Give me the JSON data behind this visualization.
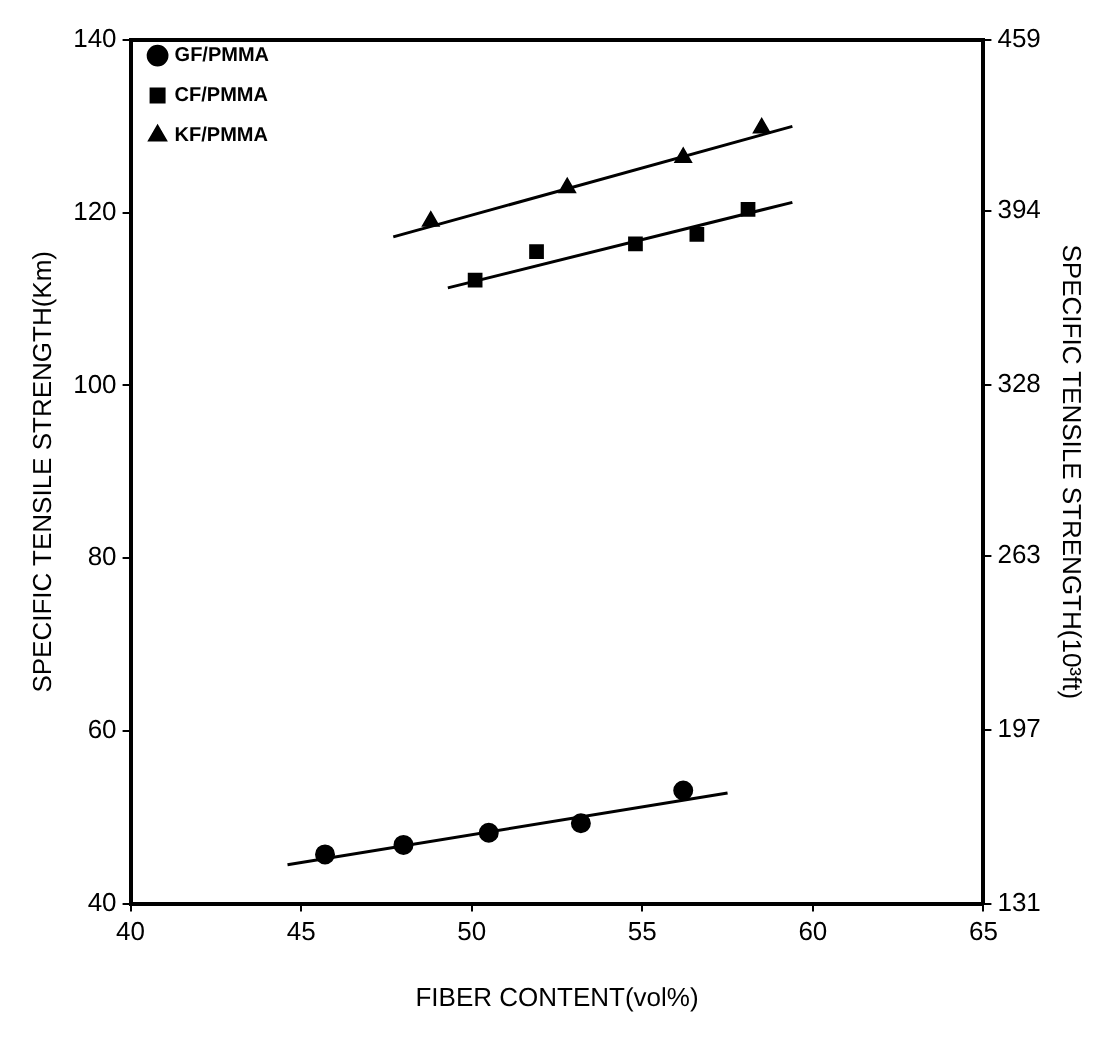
{
  "chart_data": {
    "type": "scatter",
    "xlabel": "FIBER CONTENT(vol%)",
    "ylabel": "SPECIFIC TENSILE STRENGTH(Km)",
    "y2label": "SPECIFIC TENSILE STRENGTH(10³ft)",
    "xlim": [
      40,
      65
    ],
    "xticks": [
      40,
      45,
      50,
      55,
      60,
      65
    ],
    "ylim": [
      40,
      140
    ],
    "yticks": [
      40,
      60,
      80,
      100,
      120,
      140
    ],
    "y2lim": [
      131,
      459
    ],
    "y2ticks": [
      131,
      197,
      263,
      328,
      394,
      459
    ],
    "grid": false,
    "legend": "top left",
    "series": [
      {
        "name": "GF/PMMA",
        "color": "#000000",
        "marker": "circle",
        "x": [
          45.7,
          48.0,
          50.5,
          53.2,
          56.2
        ],
        "values": [
          45.7,
          46.8,
          48.2,
          49.3,
          53.1
        ]
      },
      {
        "name": "CF/PMMA",
        "color": "#000000",
        "marker": "square",
        "x": [
          50.1,
          51.9,
          54.8,
          56.6,
          58.1
        ],
        "values": [
          112.2,
          115.5,
          116.4,
          117.5,
          120.4
        ]
      },
      {
        "name": "KF/PMMA",
        "color": "#000000",
        "marker": "triangle",
        "x": [
          48.8,
          52.8,
          56.2,
          58.5
        ],
        "values": [
          119.0,
          122.9,
          126.4,
          129.8
        ]
      },
      {
        "type": "line",
        "color": "#000000",
        "marker": "none",
        "x": [
          44.6,
          57.5
        ],
        "values": [
          44.5,
          52.8
        ]
      },
      {
        "type": "line",
        "color": "#000000",
        "marker": "none",
        "x": [
          49.3,
          59.4
        ],
        "values": [
          111.3,
          121.2
        ]
      },
      {
        "type": "line",
        "color": "#000000",
        "marker": "none",
        "x": [
          47.7,
          59.4
        ],
        "values": [
          117.2,
          130.0
        ]
      }
    ]
  }
}
